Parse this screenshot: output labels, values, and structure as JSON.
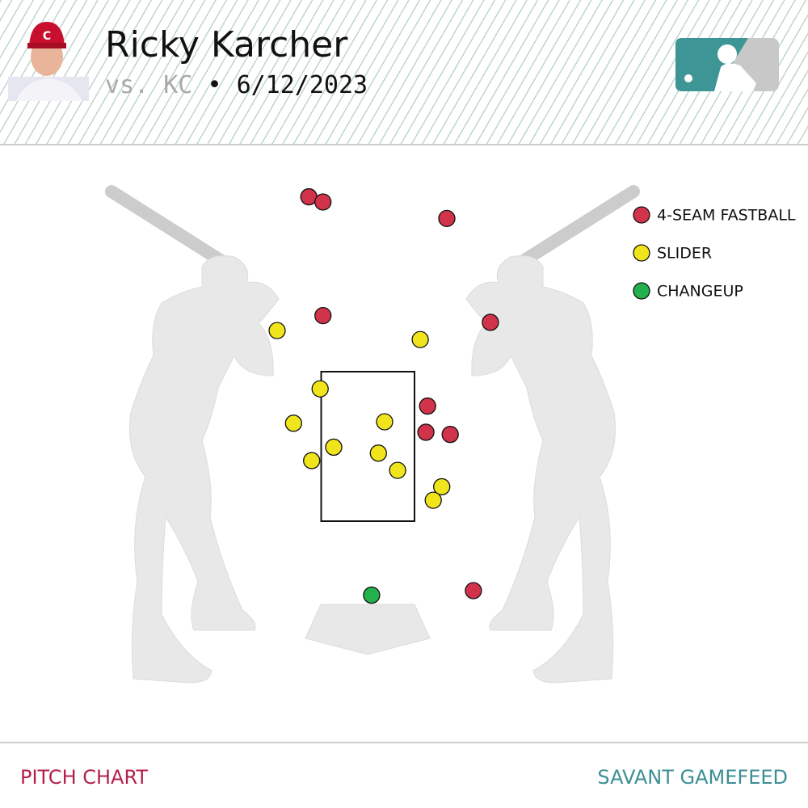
{
  "header": {
    "title": "Ricky Karcher",
    "opponent": "vs. KC",
    "separator": "•",
    "date": "6/12/2023"
  },
  "chart_data": {
    "type": "scatter",
    "xlim": [
      -2.5,
      2.5
    ],
    "ylim": [
      0,
      6
    ],
    "series": [
      {
        "name": "4-SEAM FASTBALL",
        "color": "#d0334a",
        "x": [
          -1.04,
          -0.79,
          1.4,
          -0.79,
          2.17,
          1.06,
          1.03,
          1.46,
          1.87
        ],
        "values": [
          5.84,
          5.77,
          5.55,
          4.25,
          4.16,
          3.04,
          2.69,
          2.66,
          0.57
        ]
      },
      {
        "name": "SLIDER",
        "color": "#f0e51c",
        "x": [
          -1.6,
          0.93,
          -0.84,
          -1.31,
          0.3,
          -0.6,
          0.19,
          -0.99,
          0.53,
          1.31,
          1.16
        ],
        "values": [
          4.05,
          3.93,
          3.27,
          2.81,
          2.83,
          2.49,
          2.41,
          2.31,
          2.18,
          1.96,
          1.78
        ]
      },
      {
        "name": "CHANGEUP",
        "color": "#22b14c",
        "x": [
          0.07
        ],
        "values": [
          0.51
        ]
      }
    ]
  },
  "footer": {
    "left": "PITCH CHART",
    "right": "SAVANT GAMEFEED"
  }
}
